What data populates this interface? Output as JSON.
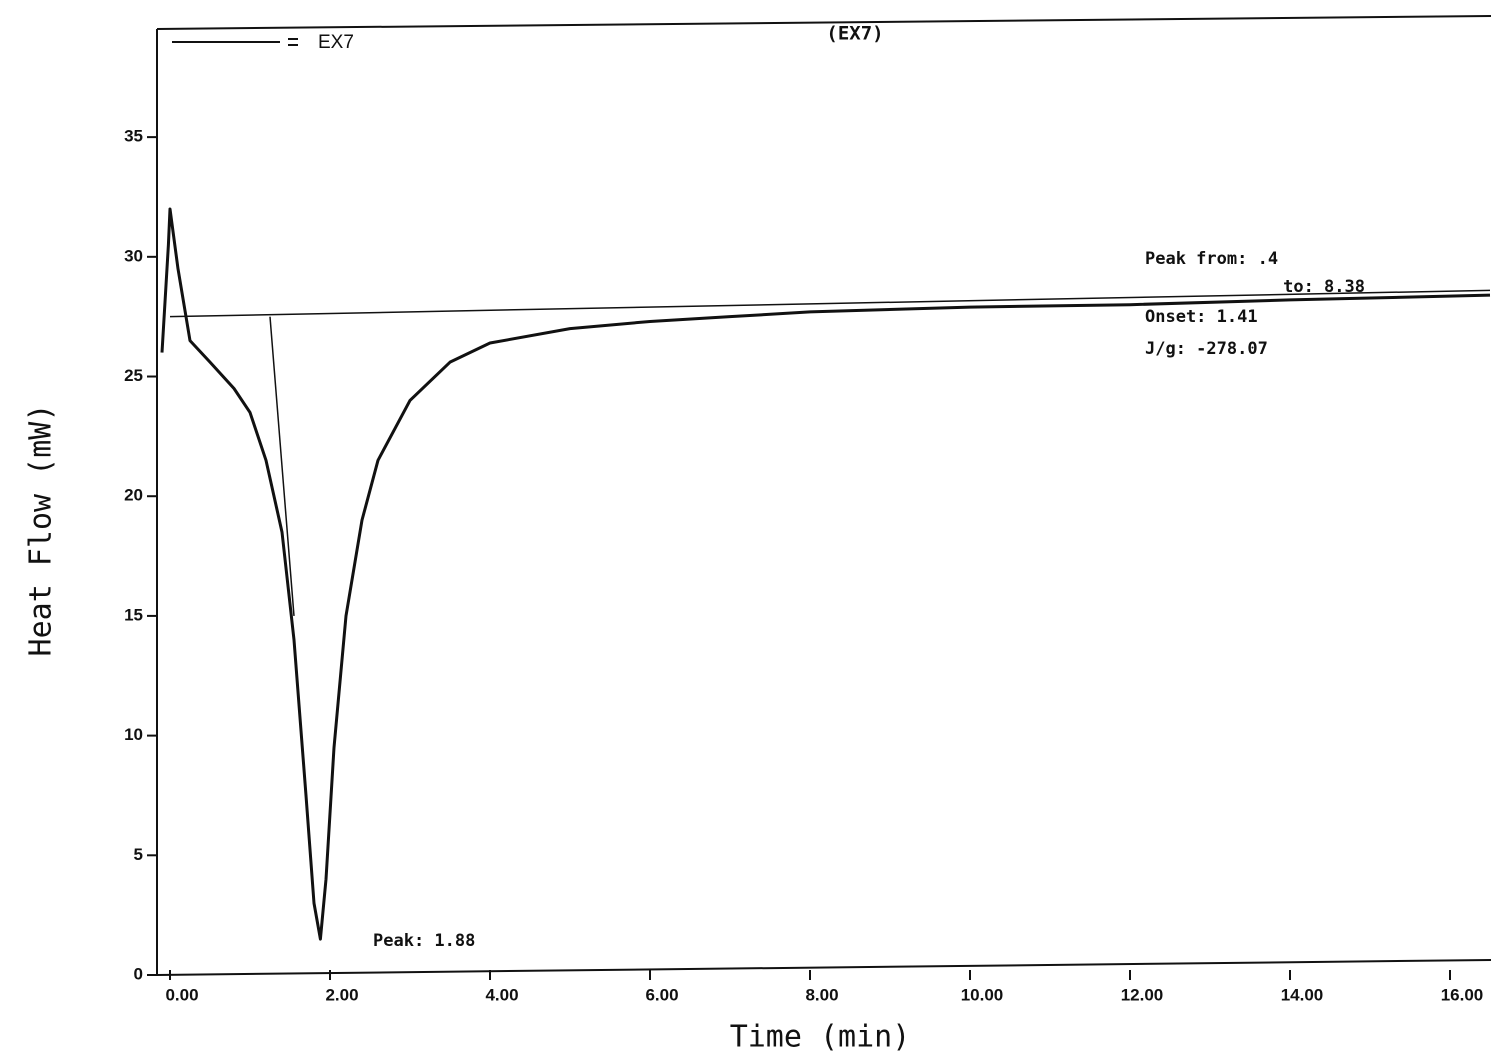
{
  "chart_data": {
    "type": "line",
    "title": "(EX7)",
    "x_label": "Time (min)",
    "y_label": "Heat Flow (mW)",
    "xlim": [
      -0.2,
      16.5
    ],
    "ylim": [
      0,
      39.5
    ],
    "xticks": [
      {
        "value": 0,
        "label": "0.00"
      },
      {
        "value": 2,
        "label": "2.00"
      },
      {
        "value": 4,
        "label": "4.00"
      },
      {
        "value": 6,
        "label": "6.00"
      },
      {
        "value": 8,
        "label": "8.00"
      },
      {
        "value": 10,
        "label": "10.00"
      },
      {
        "value": 12,
        "label": "12.00"
      },
      {
        "value": 14,
        "label": "14.00"
      },
      {
        "value": 16,
        "label": "16.00"
      }
    ],
    "yticks": [
      0,
      5,
      10,
      15,
      20,
      25,
      30,
      35
    ],
    "series": [
      {
        "name": "EX7",
        "color": "#111111",
        "x": [
          -0.1,
          -0.02,
          0.0,
          0.1,
          0.25,
          0.5,
          0.8,
          1.0,
          1.2,
          1.4,
          1.55,
          1.7,
          1.8,
          1.88,
          1.95,
          2.05,
          2.2,
          2.4,
          2.6,
          3.0,
          3.5,
          4.0,
          5.0,
          6.0,
          7.0,
          8.0,
          10.0,
          12.0,
          14.0,
          16.5
        ],
        "values": [
          26.0,
          30.5,
          32.0,
          29.5,
          26.5,
          25.6,
          24.5,
          23.5,
          21.5,
          18.5,
          14.0,
          7.5,
          3.0,
          1.5,
          4.0,
          9.5,
          15.0,
          19.0,
          21.5,
          24.0,
          25.6,
          26.4,
          27.0,
          27.3,
          27.5,
          27.7,
          27.9,
          28.0,
          28.2,
          28.4
        ]
      }
    ],
    "reference_lines": [
      {
        "x": [
          0.0,
          16.5
        ],
        "values": [
          27.5,
          28.6
        ]
      },
      {
        "x": [
          1.25,
          1.55
        ],
        "values": [
          27.5,
          15.0
        ]
      }
    ],
    "annotations": [
      "Peak from:  .4",
      "to:  8.38",
      "Onset:  1.41",
      "J/g: -278.07",
      "Peak:  1.88"
    ]
  }
}
